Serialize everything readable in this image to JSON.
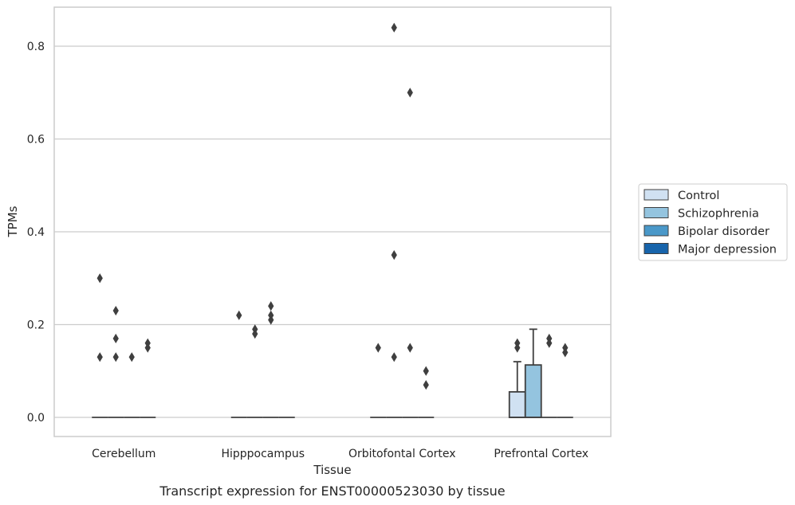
{
  "chart_data": {
    "type": "box",
    "caption": "Transcript expression for ENST00000523030 by tissue",
    "xlabel": "Tissue",
    "ylabel": "TPMs",
    "ylim": [
      -0.04,
      0.885
    ],
    "yticks": [
      0.0,
      0.2,
      0.4,
      0.6,
      0.8
    ],
    "ytick_labels": [
      "0.0",
      "0.2",
      "0.4",
      "0.6",
      "0.8"
    ],
    "grid": "horizontal",
    "legend_position": "right",
    "categories": [
      "Cerebellum",
      "Hipppocampus",
      "Orbitofontal Cortex",
      "Prefrontal Cortex"
    ],
    "series": [
      {
        "name": "Control",
        "color": "#d0e1f2"
      },
      {
        "name": "Schizophrenia",
        "color": "#94c4df"
      },
      {
        "name": "Bipolar disorder",
        "color": "#4a98c9"
      },
      {
        "name": "Major depression",
        "color": "#1764ab"
      }
    ],
    "boxes": [
      {
        "category": 0,
        "series": 0,
        "q1": 0,
        "median": 0,
        "q3": 0,
        "whisker_low": 0,
        "whisker_high": 0,
        "outliers": [
          0.3,
          0.13
        ]
      },
      {
        "category": 0,
        "series": 1,
        "q1": 0,
        "median": 0,
        "q3": 0,
        "whisker_low": 0,
        "whisker_high": 0,
        "outliers": [
          0.23,
          0.17,
          0.13
        ]
      },
      {
        "category": 0,
        "series": 2,
        "q1": 0,
        "median": 0,
        "q3": 0,
        "whisker_low": 0,
        "whisker_high": 0,
        "outliers": [
          0.13
        ]
      },
      {
        "category": 0,
        "series": 3,
        "q1": 0,
        "median": 0,
        "q3": 0,
        "whisker_low": 0,
        "whisker_high": 0,
        "outliers": [
          0.16,
          0.15
        ]
      },
      {
        "category": 1,
        "series": 0,
        "q1": 0,
        "median": 0,
        "q3": 0,
        "whisker_low": 0,
        "whisker_high": 0,
        "outliers": [
          0.22
        ]
      },
      {
        "category": 1,
        "series": 1,
        "q1": 0,
        "median": 0,
        "q3": 0,
        "whisker_low": 0,
        "whisker_high": 0,
        "outliers": [
          0.19,
          0.18
        ]
      },
      {
        "category": 1,
        "series": 2,
        "q1": 0,
        "median": 0,
        "q3": 0,
        "whisker_low": 0,
        "whisker_high": 0,
        "outliers": [
          0.24,
          0.22,
          0.21
        ]
      },
      {
        "category": 1,
        "series": 3,
        "q1": 0,
        "median": 0,
        "q3": 0,
        "whisker_low": 0,
        "whisker_high": 0,
        "outliers": []
      },
      {
        "category": 2,
        "series": 0,
        "q1": 0,
        "median": 0,
        "q3": 0,
        "whisker_low": 0,
        "whisker_high": 0,
        "outliers": [
          0.15
        ]
      },
      {
        "category": 2,
        "series": 1,
        "q1": 0,
        "median": 0,
        "q3": 0,
        "whisker_low": 0,
        "whisker_high": 0,
        "outliers": [
          0.84,
          0.35,
          0.13
        ]
      },
      {
        "category": 2,
        "series": 2,
        "q1": 0,
        "median": 0,
        "q3": 0,
        "whisker_low": 0,
        "whisker_high": 0,
        "outliers": [
          0.7,
          0.15
        ]
      },
      {
        "category": 2,
        "series": 3,
        "q1": 0,
        "median": 0,
        "q3": 0,
        "whisker_low": 0,
        "whisker_high": 0,
        "outliers": [
          0.1,
          0.07
        ]
      },
      {
        "category": 3,
        "series": 0,
        "q1": 0,
        "median": 0,
        "q3": 0.055,
        "whisker_low": 0,
        "whisker_high": 0.12,
        "outliers": [
          0.16,
          0.15
        ]
      },
      {
        "category": 3,
        "series": 1,
        "q1": 0,
        "median": 0,
        "q3": 0.113,
        "whisker_low": 0,
        "whisker_high": 0.19,
        "outliers": []
      },
      {
        "category": 3,
        "series": 2,
        "q1": 0,
        "median": 0,
        "q3": 0,
        "whisker_low": 0,
        "whisker_high": 0,
        "outliers": [
          0.17,
          0.16
        ]
      },
      {
        "category": 3,
        "series": 3,
        "q1": 0,
        "median": 0,
        "q3": 0,
        "whisker_low": 0,
        "whisker_high": 0,
        "outliers": [
          0.15,
          0.14
        ]
      }
    ]
  }
}
